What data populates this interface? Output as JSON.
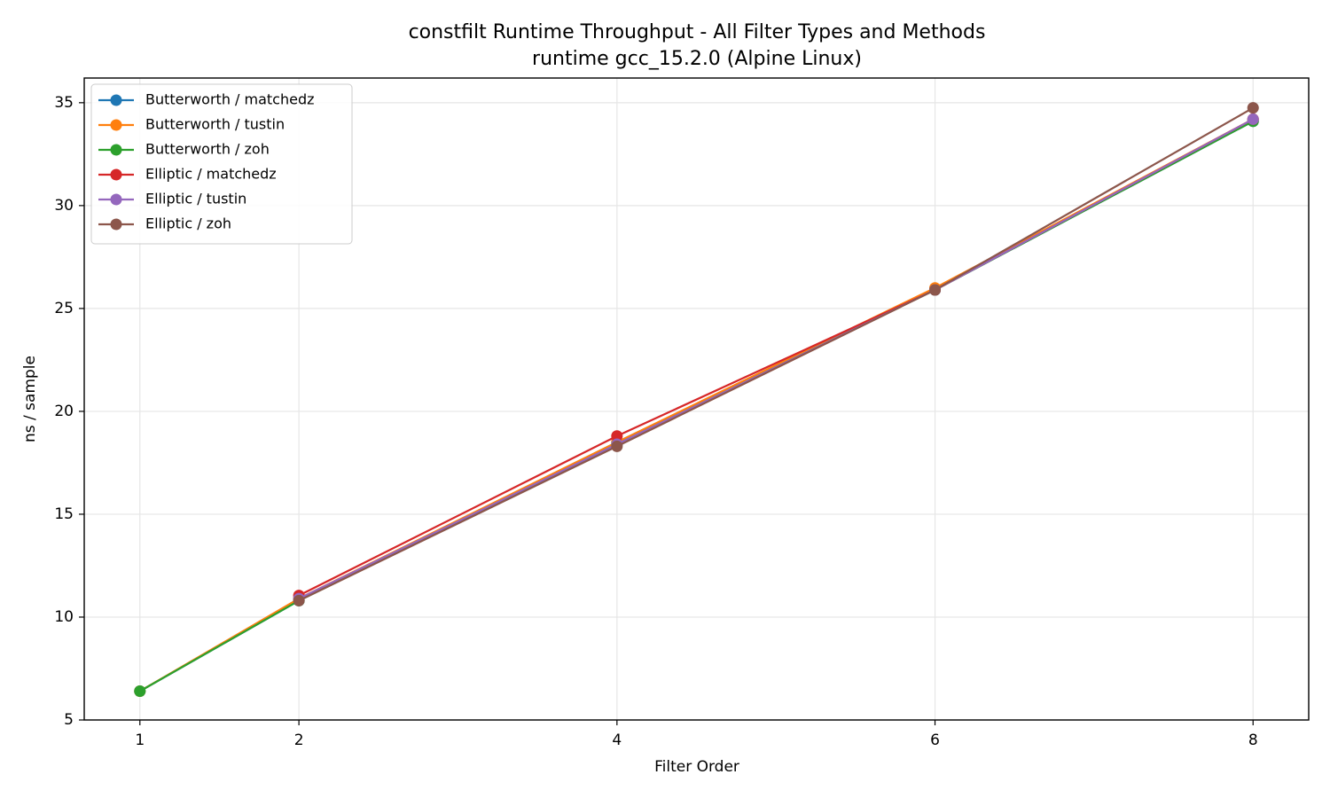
{
  "chart_data": {
    "type": "line",
    "title": "constfilt Runtime Throughput - All Filter Types and Methods",
    "subtitle": "runtime gcc_15.2.0 (Alpine Linux)",
    "x_label": "Filter Order",
    "y_label": "ns / sample",
    "xlim": [
      0.65,
      8.35
    ],
    "xticks": [
      1,
      2,
      4,
      6,
      8
    ],
    "ylim": [
      5,
      36.2
    ],
    "yticks": [
      5,
      10,
      15,
      20,
      25,
      30,
      35
    ],
    "grid": true,
    "legend": "upper-left",
    "series": [
      {
        "name": "Butterworth / matchedz",
        "color": "#1f77b4",
        "x": [
          1,
          2,
          4,
          6,
          8
        ],
        "values": [
          6.4,
          10.8,
          18.5,
          25.9,
          34.1
        ]
      },
      {
        "name": "Butterworth / tustin",
        "color": "#ff7f0e",
        "x": [
          1,
          2,
          4,
          6,
          8
        ],
        "values": [
          6.4,
          10.9,
          18.5,
          26.0,
          34.2
        ]
      },
      {
        "name": "Butterworth / zoh",
        "color": "#2ca02c",
        "x": [
          1,
          2,
          4,
          6,
          8
        ],
        "values": [
          6.4,
          10.8,
          18.4,
          25.9,
          34.1
        ]
      },
      {
        "name": "Elliptic / matchedz",
        "color": "#d62728",
        "x": [
          2,
          4,
          6,
          8
        ],
        "values": [
          11.05,
          18.8,
          25.9,
          34.2
        ]
      },
      {
        "name": "Elliptic / tustin",
        "color": "#9467bd",
        "x": [
          2,
          4,
          6,
          8
        ],
        "values": [
          10.9,
          18.4,
          25.9,
          34.2
        ]
      },
      {
        "name": "Elliptic / zoh",
        "color": "#8c564b",
        "x": [
          2,
          4,
          6,
          8
        ],
        "values": [
          10.8,
          18.3,
          25.9,
          34.75
        ]
      }
    ]
  }
}
